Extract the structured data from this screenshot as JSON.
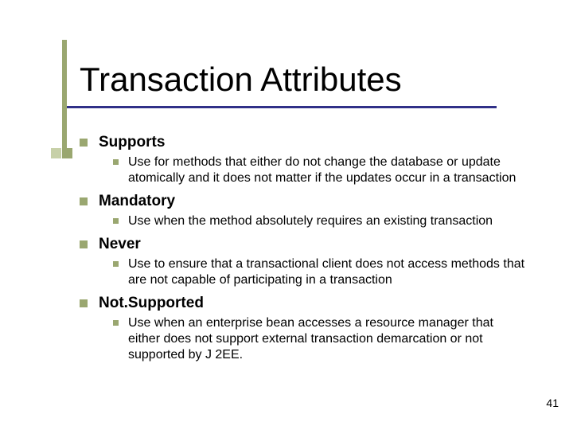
{
  "slide": {
    "title": "Transaction Attributes",
    "page_number": "41",
    "colors": {
      "accent_olive": "#9aa770",
      "accent_olive_light": "#c7d0a8",
      "rule_navy": "#303088",
      "background": "#ffffff",
      "text": "#000000"
    },
    "fonts": {
      "title_size_pt": 42,
      "l1_size_pt": 19,
      "l2_size_pt": 16
    },
    "items": [
      {
        "label": "Supports",
        "sub": [
          "Use for methods that either do not change the database or update atomically and it does not matter if the updates occur in a transaction"
        ]
      },
      {
        "label": "Mandatory",
        "sub": [
          "Use when the method absolutely requires an existing transaction"
        ]
      },
      {
        "label": "Never",
        "sub": [
          "Use to ensure that a transactional client does not access methods that are not capable of participating in a transaction"
        ]
      },
      {
        "label": "Not.Supported",
        "sub": [
          "Use when an enterprise bean accesses a resource manager that either does not support external transaction demarcation or not supported by J 2EE."
        ]
      }
    ]
  }
}
